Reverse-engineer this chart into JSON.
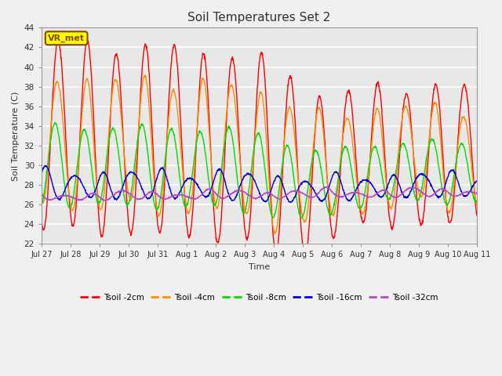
{
  "title": "Soil Temperatures Set 2",
  "xlabel": "Time",
  "ylabel": "Soil Temperature (C)",
  "ylim": [
    22,
    44
  ],
  "yticks": [
    22,
    24,
    26,
    28,
    30,
    32,
    34,
    36,
    38,
    40,
    42,
    44
  ],
  "bg_color": "#e8e8e8",
  "fig_color": "#f0f0f0",
  "grid_color": "#ffffff",
  "annotation_text": "VR_met",
  "annotation_bg": "#ffff00",
  "annotation_border": "#8b4500",
  "series_colors": {
    "Tsoil -2cm": "#ff0000",
    "Tsoil -4cm": "#ff8c00",
    "Tsoil -8cm": "#00dd00",
    "Tsoil -16cm": "#0000dd",
    "Tsoil -32cm": "#bb44cc"
  },
  "xtick_days": [
    0,
    1,
    2,
    3,
    4,
    5,
    6,
    7,
    8,
    9,
    10,
    11,
    12,
    13,
    14,
    15
  ],
  "xtick_labels": [
    "Jul 27",
    "Jul 28",
    "Jul 29",
    "Jul 30",
    "Jul 31",
    "Aug 1",
    "Aug 2",
    "Aug 3",
    "Aug 4",
    "Aug 5",
    "Aug 6",
    "Aug 7",
    "Aug 8",
    "Aug 9",
    "Aug 10",
    "Aug 11"
  ]
}
